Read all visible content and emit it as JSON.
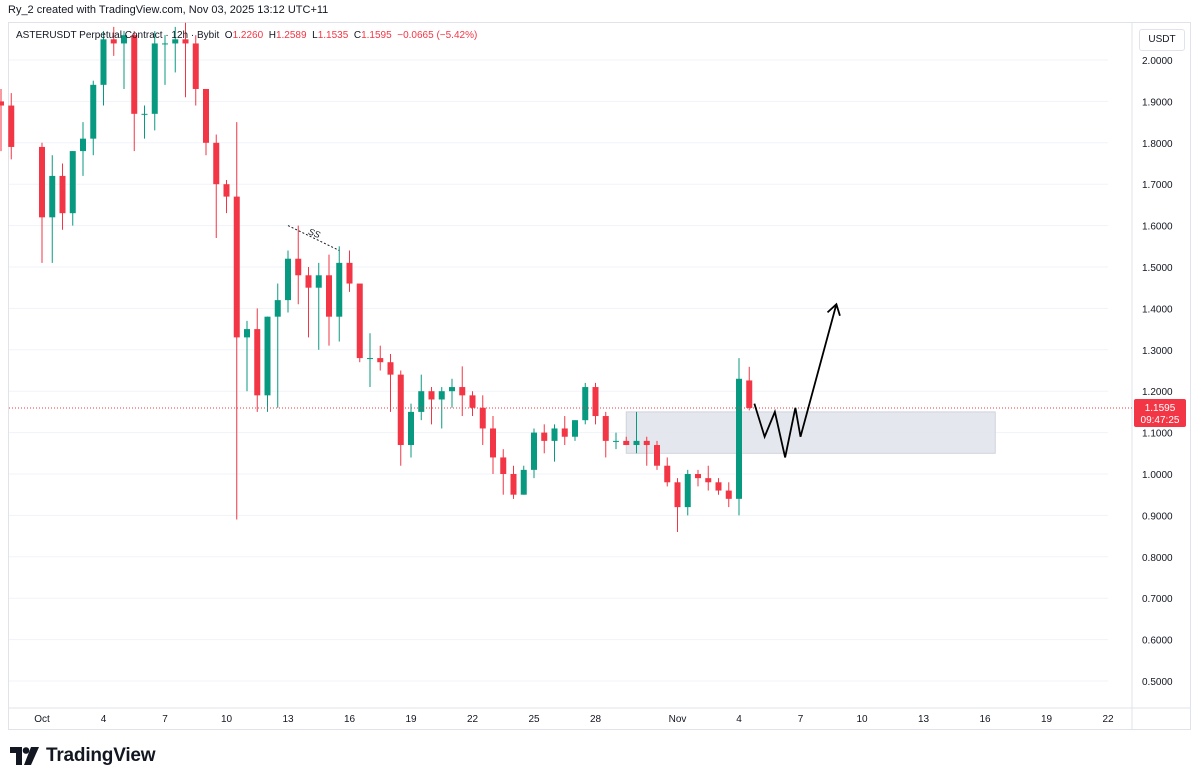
{
  "header": {
    "attribution": "Ry_2 created with TradingView.com, Nov 03, 2025 13:12 UTC+11"
  },
  "legend": {
    "symbol": "ASTERUSDT Perpetual Contract · 12h · Bybit",
    "o_label": "O",
    "o_value": "1.2260",
    "h_label": "H",
    "h_value": "1.2589",
    "l_label": "L",
    "l_value": "1.1535",
    "c_label": "C",
    "c_value": "1.1595",
    "change": "−0.0665 (−5.42%)"
  },
  "currency_button": "USDT",
  "current_price": {
    "value": "1.1595",
    "countdown": "09:47:25",
    "color": "#f23645"
  },
  "annotation_text": "SS",
  "brand": "TradingView",
  "colors": {
    "up": "#089981",
    "down": "#f23645",
    "zone": "#e0e3eb",
    "grid": "#f0f3fa",
    "axis_text": "#131722"
  },
  "chart_data": {
    "type": "candlestick",
    "interval": "12h",
    "y_axis": {
      "position": "right",
      "range": [
        0.45,
        2.05
      ],
      "ticks": [
        "2.0000",
        "1.9000",
        "1.8000",
        "1.7000",
        "1.6000",
        "1.5000",
        "1.4000",
        "1.3000",
        "1.2000",
        "1.1000",
        "1.0000",
        "0.9000",
        "0.8000",
        "0.7000",
        "0.6000",
        "0.5000"
      ]
    },
    "x_axis": {
      "ticks": [
        "Oct",
        "4",
        "7",
        "10",
        "13",
        "16",
        "19",
        "22",
        "25",
        "28",
        "Nov",
        "4",
        "7",
        "10",
        "13",
        "16",
        "19",
        "22"
      ]
    },
    "candles": [
      {
        "t": "Sep 30 00:00",
        "o": 1.9,
        "h": 1.93,
        "l": 1.78,
        "c": 1.89
      },
      {
        "t": "Sep 30 12:00",
        "o": 1.89,
        "h": 1.92,
        "l": 1.76,
        "c": 1.79
      },
      {
        "t": "Oct 1 00:00",
        "o": 1.79,
        "h": 1.8,
        "l": 1.51,
        "c": 1.62
      },
      {
        "t": "Oct 1 12:00",
        "o": 1.62,
        "h": 1.77,
        "l": 1.51,
        "c": 1.72
      },
      {
        "t": "Oct 2 00:00",
        "o": 1.72,
        "h": 1.75,
        "l": 1.59,
        "c": 1.63
      },
      {
        "t": "Oct 2 12:00",
        "o": 1.63,
        "h": 1.78,
        "l": 1.6,
        "c": 1.78
      },
      {
        "t": "Oct 3 00:00",
        "o": 1.78,
        "h": 1.85,
        "l": 1.72,
        "c": 1.81
      },
      {
        "t": "Oct 3 12:00",
        "o": 1.81,
        "h": 1.95,
        "l": 1.77,
        "c": 1.94
      },
      {
        "t": "Oct 4 00:00",
        "o": 1.94,
        "h": 2.07,
        "l": 1.89,
        "c": 2.05
      },
      {
        "t": "Oct 4 12:00",
        "o": 2.05,
        "h": 2.08,
        "l": 2.01,
        "c": 2.04
      },
      {
        "t": "Oct 5 00:00",
        "o": 2.04,
        "h": 2.07,
        "l": 1.93,
        "c": 2.06
      },
      {
        "t": "Oct 5 12:00",
        "o": 2.06,
        "h": 2.07,
        "l": 1.78,
        "c": 1.87
      },
      {
        "t": "Oct 6 00:00",
        "o": 1.87,
        "h": 1.89,
        "l": 1.81,
        "c": 1.87
      },
      {
        "t": "Oct 6 12:00",
        "o": 1.87,
        "h": 2.07,
        "l": 1.83,
        "c": 2.04
      },
      {
        "t": "Oct 7 00:00",
        "o": 2.04,
        "h": 2.06,
        "l": 1.94,
        "c": 2.04
      },
      {
        "t": "Oct 7 12:00",
        "o": 2.04,
        "h": 2.08,
        "l": 1.97,
        "c": 2.05
      },
      {
        "t": "Oct 8 00:00",
        "o": 2.05,
        "h": 2.09,
        "l": 1.91,
        "c": 2.04
      },
      {
        "t": "Oct 8 12:00",
        "o": 2.04,
        "h": 2.06,
        "l": 1.89,
        "c": 1.93
      },
      {
        "t": "Oct 9 00:00",
        "o": 1.93,
        "h": 1.93,
        "l": 1.77,
        "c": 1.8
      },
      {
        "t": "Oct 9 12:00",
        "o": 1.8,
        "h": 1.82,
        "l": 1.57,
        "c": 1.7
      },
      {
        "t": "Oct 10 00:00",
        "o": 1.7,
        "h": 1.71,
        "l": 1.63,
        "c": 1.67
      },
      {
        "t": "Oct 10 12:00",
        "o": 1.67,
        "h": 1.85,
        "l": 0.89,
        "c": 1.33
      },
      {
        "t": "Oct 11 00:00",
        "o": 1.33,
        "h": 1.37,
        "l": 1.2,
        "c": 1.35
      },
      {
        "t": "Oct 11 12:00",
        "o": 1.35,
        "h": 1.4,
        "l": 1.15,
        "c": 1.19
      },
      {
        "t": "Oct 12 00:00",
        "o": 1.19,
        "h": 1.38,
        "l": 1.15,
        "c": 1.38
      },
      {
        "t": "Oct 12 12:00",
        "o": 1.38,
        "h": 1.46,
        "l": 1.16,
        "c": 1.42
      },
      {
        "t": "Oct 13 00:00",
        "o": 1.42,
        "h": 1.54,
        "l": 1.39,
        "c": 1.52
      },
      {
        "t": "Oct 13 12:00",
        "o": 1.52,
        "h": 1.6,
        "l": 1.41,
        "c": 1.48
      },
      {
        "t": "Oct 14 00:00",
        "o": 1.48,
        "h": 1.5,
        "l": 1.33,
        "c": 1.45
      },
      {
        "t": "Oct 14 12:00",
        "o": 1.45,
        "h": 1.51,
        "l": 1.3,
        "c": 1.48
      },
      {
        "t": "Oct 15 00:00",
        "o": 1.48,
        "h": 1.53,
        "l": 1.31,
        "c": 1.38
      },
      {
        "t": "Oct 15 12:00",
        "o": 1.38,
        "h": 1.55,
        "l": 1.32,
        "c": 1.51
      },
      {
        "t": "Oct 16 00:00",
        "o": 1.51,
        "h": 1.54,
        "l": 1.44,
        "c": 1.46
      },
      {
        "t": "Oct 16 12:00",
        "o": 1.46,
        "h": 1.46,
        "l": 1.27,
        "c": 1.28
      },
      {
        "t": "Oct 17 00:00",
        "o": 1.28,
        "h": 1.34,
        "l": 1.21,
        "c": 1.28
      },
      {
        "t": "Oct 17 12:00",
        "o": 1.28,
        "h": 1.31,
        "l": 1.25,
        "c": 1.27
      },
      {
        "t": "Oct 18 00:00",
        "o": 1.27,
        "h": 1.29,
        "l": 1.15,
        "c": 1.24
      },
      {
        "t": "Oct 18 12:00",
        "o": 1.24,
        "h": 1.25,
        "l": 1.02,
        "c": 1.07
      },
      {
        "t": "Oct 19 00:00",
        "o": 1.07,
        "h": 1.17,
        "l": 1.04,
        "c": 1.15
      },
      {
        "t": "Oct 19 12:00",
        "o": 1.15,
        "h": 1.24,
        "l": 1.13,
        "c": 1.2
      },
      {
        "t": "Oct 20 00:00",
        "o": 1.2,
        "h": 1.21,
        "l": 1.12,
        "c": 1.18
      },
      {
        "t": "Oct 20 12:00",
        "o": 1.18,
        "h": 1.21,
        "l": 1.11,
        "c": 1.2
      },
      {
        "t": "Oct 21 00:00",
        "o": 1.2,
        "h": 1.23,
        "l": 1.16,
        "c": 1.21
      },
      {
        "t": "Oct 21 12:00",
        "o": 1.21,
        "h": 1.26,
        "l": 1.14,
        "c": 1.19
      },
      {
        "t": "Oct 22 00:00",
        "o": 1.19,
        "h": 1.2,
        "l": 1.14,
        "c": 1.16
      },
      {
        "t": "Oct 22 12:00",
        "o": 1.16,
        "h": 1.19,
        "l": 1.07,
        "c": 1.11
      },
      {
        "t": "Oct 23 00:00",
        "o": 1.11,
        "h": 1.14,
        "l": 1.0,
        "c": 1.04
      },
      {
        "t": "Oct 23 12:00",
        "o": 1.04,
        "h": 1.06,
        "l": 0.95,
        "c": 1.0
      },
      {
        "t": "Oct 24 00:00",
        "o": 1.0,
        "h": 1.02,
        "l": 0.94,
        "c": 0.95
      },
      {
        "t": "Oct 24 12:00",
        "o": 0.95,
        "h": 1.02,
        "l": 0.95,
        "c": 1.01
      },
      {
        "t": "Oct 25 00:00",
        "o": 1.01,
        "h": 1.11,
        "l": 0.99,
        "c": 1.1
      },
      {
        "t": "Oct 25 12:00",
        "o": 1.1,
        "h": 1.12,
        "l": 1.05,
        "c": 1.08
      },
      {
        "t": "Oct 26 00:00",
        "o": 1.08,
        "h": 1.12,
        "l": 1.03,
        "c": 1.11
      },
      {
        "t": "Oct 26 12:00",
        "o": 1.11,
        "h": 1.14,
        "l": 1.07,
        "c": 1.09
      },
      {
        "t": "Oct 27 00:00",
        "o": 1.09,
        "h": 1.13,
        "l": 1.08,
        "c": 1.13
      },
      {
        "t": "Oct 27 12:00",
        "o": 1.13,
        "h": 1.22,
        "l": 1.12,
        "c": 1.21
      },
      {
        "t": "Oct 28 00:00",
        "o": 1.21,
        "h": 1.22,
        "l": 1.12,
        "c": 1.14
      },
      {
        "t": "Oct 28 12:00",
        "o": 1.14,
        "h": 1.15,
        "l": 1.04,
        "c": 1.08
      },
      {
        "t": "Oct 29 00:00",
        "o": 1.08,
        "h": 1.1,
        "l": 1.06,
        "c": 1.08
      },
      {
        "t": "Oct 29 12:00",
        "o": 1.08,
        "h": 1.09,
        "l": 1.07,
        "c": 1.07
      },
      {
        "t": "Oct 30 00:00",
        "o": 1.07,
        "h": 1.15,
        "l": 1.05,
        "c": 1.08
      },
      {
        "t": "Oct 30 12:00",
        "o": 1.08,
        "h": 1.09,
        "l": 1.02,
        "c": 1.07
      },
      {
        "t": "Oct 31 00:00",
        "o": 1.07,
        "h": 1.08,
        "l": 1.01,
        "c": 1.02
      },
      {
        "t": "Oct 31 12:00",
        "o": 1.02,
        "h": 1.04,
        "l": 0.97,
        "c": 0.98
      },
      {
        "t": "Nov 1 00:00",
        "o": 0.98,
        "h": 0.99,
        "l": 0.86,
        "c": 0.92
      },
      {
        "t": "Nov 1 12:00",
        "o": 0.92,
        "h": 1.01,
        "l": 0.9,
        "c": 1.0
      },
      {
        "t": "Nov 2 00:00",
        "o": 1.0,
        "h": 1.01,
        "l": 0.97,
        "c": 0.99
      },
      {
        "t": "Nov 2 12:00",
        "o": 0.99,
        "h": 1.02,
        "l": 0.96,
        "c": 0.98
      },
      {
        "t": "Nov 3 00:00",
        "o": 0.98,
        "h": 0.99,
        "l": 0.95,
        "c": 0.96
      },
      {
        "t": "Nov 3 12:00",
        "o": 0.96,
        "h": 0.98,
        "l": 0.92,
        "c": 0.94
      },
      {
        "t": "Nov 4 00:00",
        "o": 0.94,
        "h": 1.28,
        "l": 0.9,
        "c": 1.23
      },
      {
        "t": "Nov 4 12:00",
        "o": 1.226,
        "h": 1.2589,
        "l": 1.1535,
        "c": 1.1595
      }
    ],
    "zone": {
      "price_top": 1.15,
      "price_bottom": 1.05,
      "from": "Oct 29 12:00",
      "to": "Nov 16 12:00"
    },
    "projection": [
      {
        "t": "Nov 4 18:00",
        "p": 1.17
      },
      {
        "t": "Nov 5 06:00",
        "p": 1.09
      },
      {
        "t": "Nov 5 18:00",
        "p": 1.15
      },
      {
        "t": "Nov 6 06:00",
        "p": 1.04
      },
      {
        "t": "Nov 6 18:00",
        "p": 1.16
      },
      {
        "t": "Nov 7 00:00",
        "p": 1.09
      },
      {
        "t": "Nov 8 18:00",
        "p": 1.41
      }
    ],
    "ss_line": {
      "from": "Oct 13 00:00",
      "to": "Oct 15 12:00",
      "p_from": 1.6,
      "p_to": 1.54
    }
  }
}
